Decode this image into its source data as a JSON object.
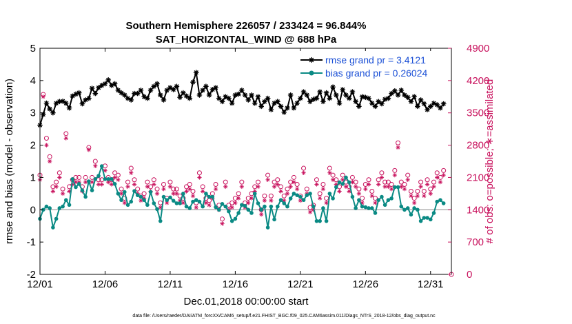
{
  "chart_data": {
    "type": "line",
    "title": "Southern Hemisphere 226057 / 233424 = 96.844%",
    "subtitle": "SAT_HORIZONTAL_WIND @ 688 hPa",
    "xlabel": "Dec.01,2018 00:00:00 start",
    "ylabel": "rmse and bias (model - observation)",
    "y2label": "# of obs: o=possible; ∗=assimilated",
    "xlim": [
      0,
      31.6
    ],
    "ylim": [
      -2,
      5
    ],
    "y2lim": [
      0,
      4900
    ],
    "x_ticks": [
      0,
      5,
      10,
      15,
      20,
      25,
      30
    ],
    "x_tick_labels": [
      "12/01",
      "12/06",
      "12/11",
      "12/16",
      "12/21",
      "12/26",
      "12/31"
    ],
    "y_ticks": [
      -2,
      -1,
      0,
      1,
      2,
      3,
      4,
      5
    ],
    "y2_ticks": [
      0,
      700,
      1400,
      2100,
      2800,
      3500,
      4200,
      4900
    ],
    "footnote": "data file: /Users/raeder/DAI/ATM_forcXX/CAM6_setup/f.e21.FHIST_BGC.f09_025.CAM6assim.011/Diags_NTrS_2018-12/obs_diag_output.nc",
    "legend_position": "top-right",
    "colors": {
      "rmse": "#000000",
      "bias": "#0a8a84",
      "obs": "#c8105c",
      "zero": "#b0b0b0"
    },
    "series": [
      {
        "name": "rmse",
        "legend_label": "rmse grand pr = 3.4121",
        "axis": "left",
        "marker": "asterisk",
        "x": [
          0.0,
          0.25,
          0.5,
          0.75,
          1.0,
          1.25,
          1.5,
          1.75,
          2.0,
          2.25,
          2.5,
          2.75,
          3.0,
          3.25,
          3.5,
          3.75,
          4.0,
          4.25,
          4.5,
          4.75,
          5.0,
          5.25,
          5.5,
          5.75,
          6.0,
          6.25,
          6.5,
          6.75,
          7.0,
          7.25,
          7.5,
          7.75,
          8.0,
          8.25,
          8.5,
          8.75,
          9.0,
          9.25,
          9.5,
          9.75,
          10.0,
          10.25,
          10.5,
          10.75,
          11.0,
          11.25,
          11.5,
          11.75,
          12.0,
          12.25,
          12.5,
          12.75,
          13.0,
          13.25,
          13.5,
          13.75,
          14.0,
          14.25,
          14.5,
          14.75,
          15.0,
          15.25,
          15.5,
          15.75,
          16.0,
          16.25,
          16.5,
          16.75,
          17.0,
          17.25,
          17.5,
          17.75,
          18.0,
          18.25,
          18.5,
          18.75,
          19.0,
          19.25,
          19.5,
          19.75,
          20.0,
          20.25,
          20.5,
          20.75,
          21.0,
          21.25,
          21.5,
          21.75,
          22.0,
          22.25,
          22.5,
          22.75,
          23.0,
          23.25,
          23.5,
          23.75,
          24.0,
          24.25,
          24.5,
          24.75,
          25.0,
          25.25,
          25.5,
          25.75,
          26.0,
          26.25,
          26.5,
          26.75,
          27.0,
          27.25,
          27.5,
          27.75,
          28.0,
          28.25,
          28.5,
          28.75,
          29.0,
          29.25,
          29.5,
          29.75,
          30.0,
          30.25,
          30.5,
          30.75,
          31.0
        ],
        "values": [
          2.62,
          2.95,
          3.3,
          3.12,
          3.0,
          3.3,
          3.35,
          3.36,
          3.3,
          3.15,
          3.52,
          3.58,
          3.62,
          3.28,
          3.4,
          3.45,
          3.76,
          3.6,
          3.78,
          3.85,
          3.9,
          4.02,
          3.85,
          3.9,
          3.7,
          3.62,
          3.55,
          3.45,
          3.4,
          3.6,
          3.6,
          3.7,
          3.5,
          3.45,
          3.7,
          3.82,
          3.9,
          3.55,
          3.4,
          3.7,
          3.78,
          3.72,
          3.82,
          3.48,
          3.62,
          3.52,
          3.45,
          3.95,
          4.25,
          3.55,
          3.7,
          3.82,
          3.55,
          3.72,
          3.78,
          3.45,
          3.35,
          3.5,
          3.45,
          3.3,
          3.55,
          3.58,
          3.7,
          3.55,
          3.4,
          3.55,
          3.3,
          3.5,
          3.2,
          3.35,
          3.45,
          3.1,
          3.3,
          3.35,
          3.2,
          3.02,
          3.15,
          3.55,
          3.15,
          3.3,
          3.45,
          3.65,
          3.55,
          3.35,
          3.42,
          3.45,
          3.65,
          3.35,
          3.62,
          3.45,
          3.8,
          3.55,
          3.3,
          3.72,
          3.55,
          3.45,
          3.65,
          3.35,
          3.2,
          3.5,
          3.48,
          3.45,
          3.3,
          3.2,
          3.35,
          3.28,
          3.42,
          3.45,
          3.6,
          3.68,
          3.55,
          3.7,
          3.55,
          3.48,
          3.35,
          3.5,
          3.2,
          3.4,
          3.28,
          3.1,
          3.2,
          3.3,
          3.25,
          3.15,
          3.28
        ]
      },
      {
        "name": "bias",
        "legend_label": "bias grand pr = 0.26024",
        "axis": "left",
        "marker": "circle",
        "x": [
          0.0,
          0.25,
          0.5,
          0.75,
          1.0,
          1.25,
          1.5,
          1.75,
          2.0,
          2.25,
          2.5,
          2.75,
          3.0,
          3.25,
          3.5,
          3.75,
          4.0,
          4.25,
          4.5,
          4.75,
          5.0,
          5.25,
          5.5,
          5.75,
          6.0,
          6.25,
          6.5,
          6.75,
          7.0,
          7.25,
          7.5,
          7.75,
          8.0,
          8.25,
          8.5,
          8.75,
          9.0,
          9.25,
          9.5,
          9.75,
          10.0,
          10.25,
          10.5,
          10.75,
          11.0,
          11.25,
          11.5,
          11.75,
          12.0,
          12.25,
          12.5,
          12.75,
          13.0,
          13.25,
          13.5,
          13.75,
          14.0,
          14.25,
          14.5,
          14.75,
          15.0,
          15.25,
          15.5,
          15.75,
          16.0,
          16.25,
          16.5,
          16.75,
          17.0,
          17.25,
          17.5,
          17.75,
          18.0,
          18.25,
          18.5,
          18.75,
          19.0,
          19.25,
          19.5,
          19.75,
          20.0,
          20.25,
          20.5,
          20.75,
          21.0,
          21.25,
          21.5,
          21.75,
          22.0,
          22.25,
          22.5,
          22.75,
          23.0,
          23.25,
          23.5,
          23.75,
          24.0,
          24.25,
          24.5,
          24.75,
          25.0,
          25.25,
          25.5,
          25.75,
          26.0,
          26.25,
          26.5,
          26.75,
          27.0,
          27.25,
          27.5,
          27.75,
          28.0,
          28.25,
          28.5,
          28.75,
          29.0,
          29.25,
          29.5,
          29.75,
          30.0,
          30.25,
          30.5,
          30.75,
          31.0
        ],
        "values": [
          -0.28,
          0.0,
          0.1,
          0.05,
          -0.55,
          -0.28,
          0.05,
          0.1,
          0.3,
          0.15,
          0.95,
          0.7,
          0.8,
          0.6,
          0.4,
          0.88,
          0.6,
          0.95,
          1.05,
          1.35,
          0.95,
          0.95,
          0.95,
          0.8,
          0.5,
          0.3,
          0.55,
          0.15,
          0.25,
          0.58,
          0.45,
          0.4,
          0.3,
          0.15,
          0.55,
          0.2,
          0.02,
          -0.35,
          0.4,
          0.3,
          0.38,
          0.28,
          0.2,
          0.2,
          0.5,
          0.1,
          0.05,
          0.25,
          0.3,
          0.25,
          0.1,
          0.5,
          0.4,
          0.4,
          0.08,
          0.0,
          0.18,
          0.1,
          -0.05,
          -0.35,
          -0.28,
          -0.1,
          0.15,
          0.12,
          0.0,
          -0.1,
          0.5,
          0.2,
          0.0,
          0.1,
          -0.55,
          0.1,
          -0.3,
          0.1,
          0.3,
          0.2,
          0.1,
          0.35,
          0.5,
          0.45,
          0.4,
          0.3,
          0.45,
          0.5,
          0.1,
          -0.35,
          -0.35,
          0.05,
          -0.35,
          0.5,
          0.35,
          0.7,
          0.85,
          0.8,
          1.0,
          0.85,
          0.4,
          0.05,
          0.3,
          0.1,
          0.08,
          0.05,
          0.05,
          -0.1,
          0.3,
          0.4,
          0.15,
          0.3,
          0.35,
          0.7,
          0.7,
          0.1,
          0.0,
          0.05,
          -0.15,
          0.05,
          0.0,
          -0.35,
          -0.25,
          -0.25,
          -0.3,
          -0.1,
          0.25,
          0.3,
          0.2
        ]
      },
      {
        "name": "obs_possible",
        "axis": "right",
        "marker": "open-circle",
        "x": [
          0.0,
          0.25,
          0.5,
          0.75,
          1.0,
          1.25,
          1.5,
          1.75,
          2.0,
          2.25,
          2.5,
          2.75,
          3.0,
          3.25,
          3.5,
          3.75,
          4.0,
          4.25,
          4.5,
          4.75,
          5.0,
          5.25,
          5.5,
          5.75,
          6.0,
          6.25,
          6.5,
          6.75,
          7.0,
          7.25,
          7.5,
          7.75,
          8.0,
          8.25,
          8.5,
          8.75,
          9.0,
          9.25,
          9.5,
          9.75,
          10.0,
          10.25,
          10.5,
          10.75,
          11.0,
          11.25,
          11.5,
          11.75,
          12.0,
          12.25,
          12.5,
          12.75,
          13.0,
          13.25,
          13.5,
          13.75,
          14.0,
          14.25,
          14.5,
          14.75,
          15.0,
          15.25,
          15.5,
          15.75,
          16.0,
          16.25,
          16.5,
          16.75,
          17.0,
          17.25,
          17.5,
          17.75,
          18.0,
          18.25,
          18.5,
          18.75,
          19.0,
          19.25,
          19.5,
          19.75,
          20.0,
          20.25,
          20.5,
          20.75,
          21.0,
          21.25,
          21.5,
          21.75,
          22.0,
          22.25,
          22.5,
          22.75,
          23.0,
          23.25,
          23.5,
          23.75,
          24.0,
          24.25,
          24.5,
          24.75,
          25.0,
          25.25,
          25.5,
          25.75,
          26.0,
          26.25,
          26.5,
          26.75,
          27.0,
          27.25,
          27.5,
          27.75,
          28.0,
          28.25,
          28.5,
          28.75,
          29.0,
          29.25,
          29.5,
          29.75,
          30.0,
          30.25,
          30.5,
          30.75,
          31.0
        ],
        "values": [
          2150,
          3900,
          2950,
          2550,
          1900,
          2000,
          2200,
          1850,
          3050,
          1900,
          2050,
          2100,
          2100,
          1900,
          2100,
          2750,
          2100,
          2450,
          2050,
          2050,
          2350,
          2100,
          2050,
          2200,
          2150,
          1850,
          1650,
          2000,
          2300,
          2050,
          1850,
          1700,
          1750,
          2000,
          1900,
          2050,
          1850,
          1550,
          1950,
          1650,
          2000,
          1850,
          1850,
          1700,
          1650,
          1900,
          1950,
          1800,
          1550,
          2200,
          1900,
          1650,
          1600,
          1750,
          1950,
          1500,
          1200,
          2000,
          1500,
          1550,
          1650,
          1750,
          2000,
          1550,
          1650,
          1750,
          1900,
          2000,
          1400,
          1700,
          2150,
          1700,
          2000,
          2050,
          1900,
          1700,
          1850,
          2000,
          2100,
          1950,
          1700,
          2300,
          1850,
          1450,
          1500,
          2050,
          1750,
          1950,
          1650,
          2300,
          2150,
          2050,
          1900,
          2150,
          2000,
          1900,
          2100,
          2000,
          1850,
          1650,
          1950,
          2050,
          1800,
          1650,
          2050,
          2200,
          2000,
          2000,
          1950,
          2250,
          2850,
          2000,
          1950,
          2150,
          1800,
          1650,
          1800,
          2000,
          1800,
          2050,
          1850,
          2000,
          2200,
          2100,
          2250
        ]
      },
      {
        "name": "obs_assimilated",
        "axis": "right",
        "marker": "asterisk",
        "x": [
          0.0,
          0.25,
          0.5,
          0.75,
          1.0,
          1.25,
          1.5,
          1.75,
          2.0,
          2.25,
          2.5,
          2.75,
          3.0,
          3.25,
          3.5,
          3.75,
          4.0,
          4.25,
          4.5,
          4.75,
          5.0,
          5.25,
          5.5,
          5.75,
          6.0,
          6.25,
          6.5,
          6.75,
          7.0,
          7.25,
          7.5,
          7.75,
          8.0,
          8.25,
          8.5,
          8.75,
          9.0,
          9.25,
          9.5,
          9.75,
          10.0,
          10.25,
          10.5,
          10.75,
          11.0,
          11.25,
          11.5,
          11.75,
          12.0,
          12.25,
          12.5,
          12.75,
          13.0,
          13.25,
          13.5,
          13.75,
          14.0,
          14.25,
          14.5,
          14.75,
          15.0,
          15.25,
          15.5,
          15.75,
          16.0,
          16.25,
          16.5,
          16.75,
          17.0,
          17.25,
          17.5,
          17.75,
          18.0,
          18.25,
          18.5,
          18.75,
          19.0,
          19.25,
          19.5,
          19.75,
          20.0,
          20.25,
          20.5,
          20.75,
          21.0,
          21.25,
          21.5,
          21.75,
          22.0,
          22.25,
          22.5,
          22.75,
          23.0,
          23.25,
          23.5,
          23.75,
          24.0,
          24.25,
          24.5,
          24.75,
          25.0,
          25.25,
          25.5,
          25.75,
          26.0,
          26.25,
          26.5,
          26.75,
          27.0,
          27.25,
          27.5,
          27.75,
          28.0,
          28.25,
          28.5,
          28.75,
          29.0,
          29.25,
          29.5,
          29.75,
          30.0,
          30.25,
          30.5,
          30.75,
          31.0
        ],
        "values": [
          2050,
          3850,
          2800,
          2450,
          1800,
          1900,
          2100,
          1750,
          2950,
          1800,
          1950,
          2000,
          2000,
          1800,
          2000,
          2700,
          2000,
          2350,
          1950,
          1950,
          2250,
          2000,
          1950,
          2100,
          2050,
          1750,
          1550,
          1900,
          2200,
          1950,
          1750,
          1600,
          1650,
          1900,
          1800,
          1950,
          1750,
          1450,
          1850,
          1550,
          1900,
          1750,
          1750,
          1600,
          1550,
          1800,
          1850,
          1700,
          1450,
          2100,
          1800,
          1550,
          1500,
          1650,
          1850,
          1400,
          1100,
          1900,
          1400,
          1450,
          1550,
          1650,
          1900,
          1450,
          1550,
          1650,
          1800,
          1900,
          1300,
          1600,
          2050,
          1600,
          1900,
          1950,
          1800,
          1600,
          1750,
          1900,
          2000,
          1850,
          1600,
          2200,
          1750,
          1350,
          1400,
          1950,
          1650,
          1850,
          1550,
          2200,
          2050,
          1950,
          1800,
          2050,
          1900,
          1800,
          2000,
          1900,
          1750,
          1550,
          1850,
          1950,
          1700,
          1550,
          1950,
          2100,
          1900,
          1900,
          1850,
          2150,
          2750,
          1900,
          1850,
          2050,
          1700,
          1550,
          1700,
          1900,
          1700,
          1950,
          1750,
          1900,
          2100,
          2000,
          2150
        ]
      }
    ]
  }
}
